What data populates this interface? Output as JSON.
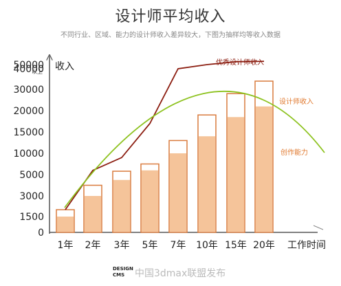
{
  "title": "设计师平均收入",
  "subtitle": "不同行业、区域、能力的设计师收入差异较大，下图为抽样均等收入数据",
  "watermark": {
    "logo_top": "DESIGN",
    "logo_bottom": "CMS",
    "text": "中国3dmax联盟发布"
  },
  "colors": {
    "bar_fill": "#f5c49a",
    "bar_stroke": "#d97a3c",
    "top_line": "#8b1c0f",
    "ability_line": "#8dc21f",
    "design_label": "#e07a30"
  },
  "chart_data": {
    "type": "bar",
    "categories": [
      "1年",
      "2年",
      "3年",
      "5年",
      "7年",
      "10年",
      "15年",
      "20年"
    ],
    "xlabel": "工作时间",
    "ylabel": "收入",
    "y_ticks": [
      "0",
      "1500",
      "3000",
      "5000",
      "10000",
      "15000",
      "20000",
      "30000",
      "40000",
      "50000"
    ],
    "y_tick_extra": "以上",
    "series": [
      {
        "name": "设计师收入",
        "values": [
          2000,
          4000,
          5800,
          7500,
          13000,
          19000,
          28000,
          34000
        ],
        "lower_values": [
          1500,
          3000,
          4500,
          6000,
          10000,
          14000,
          18500,
          22000
        ]
      },
      {
        "name": "优秀设计师收入",
        "values": [
          2000,
          6000,
          9000,
          17000,
          40000,
          50000,
          57000,
          58000
        ]
      },
      {
        "name": "创作能力",
        "shape": "arc"
      }
    ]
  }
}
